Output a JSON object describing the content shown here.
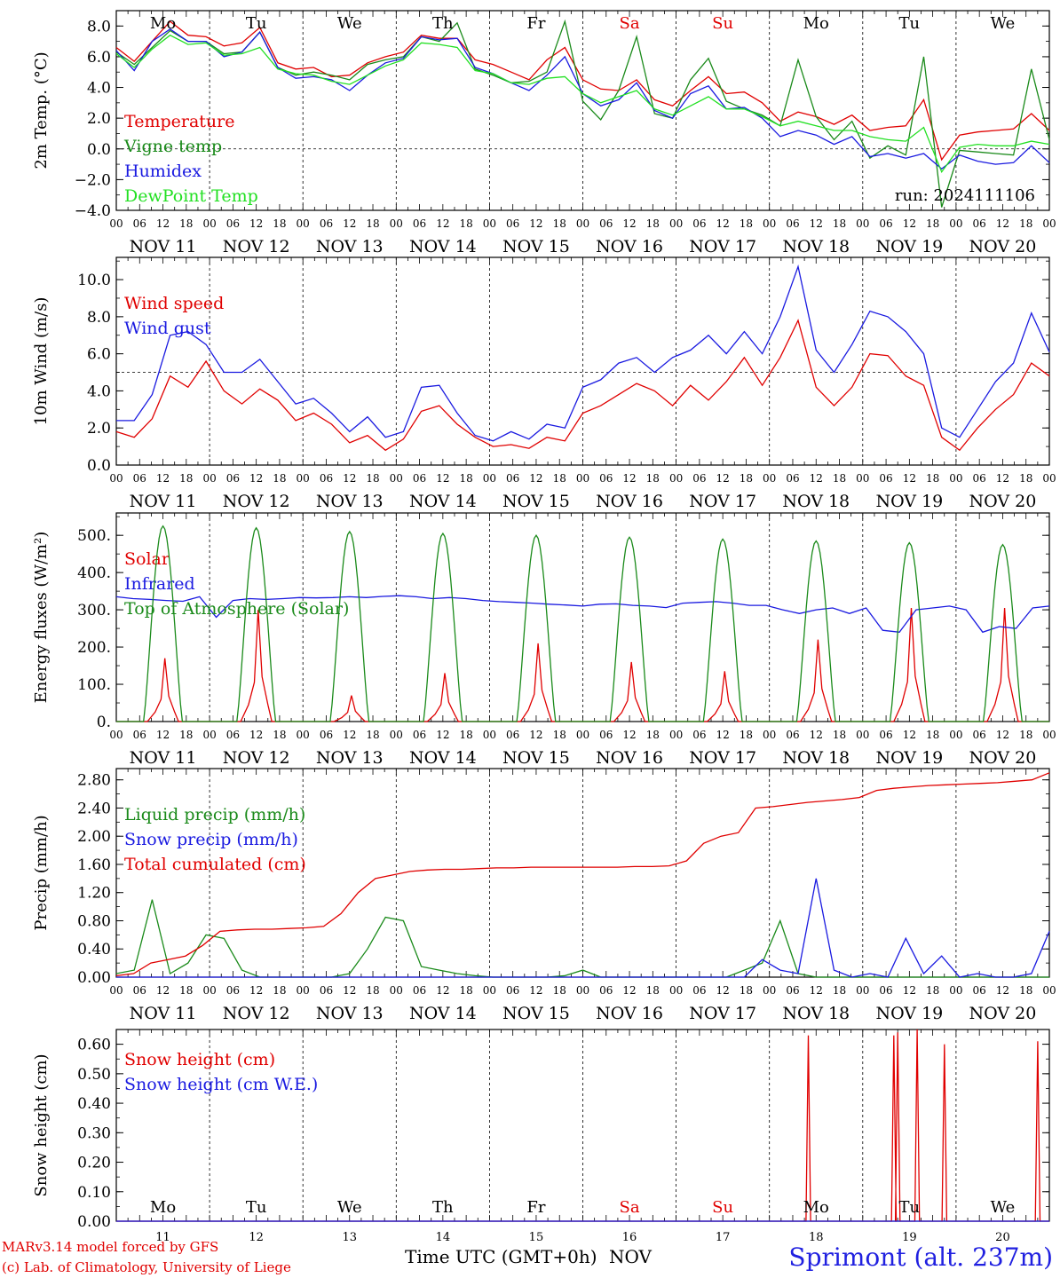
{
  "day_labels": [
    "Mo",
    "Tu",
    "We",
    "Th",
    "Fr",
    "Sa",
    "Su",
    "Mo",
    "Tu",
    "We"
  ],
  "day_colors": [
    "#000000",
    "#000000",
    "#000000",
    "#000000",
    "#000000",
    "#e00000",
    "#e00000",
    "#000000",
    "#000000",
    "#000000"
  ],
  "date_labels": [
    "NOV 11",
    "NOV 12",
    "NOV 13",
    "NOV 14",
    "NOV 15",
    "NOV 16",
    "NOV 17",
    "NOV 18",
    "NOV 19",
    "NOV 20"
  ],
  "hour_labels": [
    "00",
    "06",
    "12",
    "18"
  ],
  "bottom_day_numbers": [
    "11",
    "12",
    "13",
    "14",
    "15",
    "16",
    "17",
    "18",
    "19",
    "20"
  ],
  "bottom_month": "NOV",
  "xlabel": "Time UTC (GMT+0h)",
  "station": "Sprimont (alt. 237m)",
  "credits": [
    "MARv3.14 model forced by GFS",
    "(c) Lab. of Climatology, University of Liege"
  ],
  "run_label": "run: 2024111106",
  "colors": {
    "red": "#e00000",
    "green": "#1a8a1a",
    "blue": "#1a1ae0",
    "lightgreen": "#22e022"
  },
  "chart_data": [
    {
      "type": "line",
      "ylabel": "2m Temp. (°C)",
      "ylim": [
        -4,
        9
      ],
      "yticks": [
        "8.0",
        "6.0",
        "4.0",
        "2.0",
        "0.0",
        "−2.0",
        "−4.0"
      ],
      "ytick_values": [
        8,
        6,
        4,
        2,
        0,
        -2,
        -4
      ],
      "ref_line": 0,
      "x_hours_step": 6,
      "series": [
        {
          "name": "Temperature",
          "color": "#e00000",
          "values": [
            6.6,
            5.7,
            7.0,
            8.3,
            7.4,
            7.3,
            6.7,
            6.9,
            7.9,
            5.6,
            5.2,
            5.3,
            4.7,
            4.8,
            5.6,
            6.0,
            6.3,
            7.4,
            7.2,
            7.2,
            5.8,
            5.5,
            5.0,
            4.5,
            5.8,
            6.6,
            4.5,
            3.9,
            3.8,
            4.5,
            3.2,
            2.8,
            3.8,
            4.7,
            3.6,
            3.7,
            3.0,
            1.8,
            2.4,
            2.1,
            1.6,
            2.2,
            1.2,
            1.4,
            1.5,
            3.2,
            -0.7,
            0.9,
            1.1,
            1.2,
            1.3,
            2.3,
            1.2
          ]
        },
        {
          "name": "Vigne temp",
          "color": "#1a8a1a",
          "values": [
            6.3,
            5.5,
            6.6,
            7.7,
            7.0,
            7.0,
            6.2,
            6.3,
            7.6,
            5.3,
            4.8,
            5.0,
            4.8,
            4.5,
            5.5,
            5.8,
            6.0,
            7.3,
            7.0,
            8.2,
            5.2,
            4.8,
            4.3,
            4.4,
            5.0,
            8.3,
            3.1,
            1.9,
            3.8,
            7.3,
            2.3,
            2.0,
            4.5,
            5.9,
            3.1,
            2.6,
            2.2,
            1.5,
            5.8,
            2.1,
            0.6,
            1.8,
            -0.6,
            0.2,
            -0.4,
            6.0,
            -3.8,
            -0.1,
            -0.2,
            -0.3,
            -0.4,
            5.2,
            0.6
          ]
        },
        {
          "name": "Humidex",
          "color": "#1a1ae0",
          "values": [
            6.4,
            5.1,
            7.0,
            7.8,
            7.0,
            7.0,
            6.0,
            6.3,
            7.6,
            5.3,
            4.6,
            4.7,
            4.5,
            3.8,
            4.8,
            5.6,
            5.9,
            7.3,
            7.1,
            7.2,
            5.3,
            4.9,
            4.3,
            3.8,
            4.8,
            6.0,
            3.6,
            2.8,
            3.2,
            4.3,
            2.5,
            2.0,
            3.6,
            4.1,
            2.6,
            2.7,
            2.0,
            0.8,
            1.2,
            0.9,
            0.3,
            0.8,
            -0.5,
            -0.3,
            -0.6,
            -0.3,
            -1.3,
            -0.4,
            -0.8,
            -1.0,
            -0.9,
            0.2,
            -0.9
          ]
        },
        {
          "name": "DewPoint Temp",
          "color": "#22e022",
          "values": [
            6.2,
            5.3,
            6.5,
            7.4,
            6.8,
            6.9,
            6.1,
            6.2,
            6.6,
            5.2,
            4.9,
            4.8,
            4.4,
            4.2,
            4.8,
            5.4,
            5.8,
            6.9,
            6.8,
            6.6,
            5.1,
            4.9,
            4.3,
            4.2,
            4.6,
            4.7,
            3.6,
            3.0,
            3.4,
            3.8,
            2.6,
            2.2,
            2.8,
            3.4,
            2.6,
            2.6,
            2.1,
            1.5,
            1.8,
            1.5,
            1.2,
            1.2,
            0.8,
            0.6,
            0.5,
            1.4,
            -1.5,
            0.1,
            0.3,
            0.2,
            0.2,
            0.5,
            0.3
          ]
        }
      ]
    },
    {
      "type": "line",
      "ylabel": "10m Wind (m/s)",
      "ylim": [
        0,
        11.2
      ],
      "yticks": [
        "10.0",
        "8.0",
        "6.0",
        "4.0",
        "2.0",
        "0.0"
      ],
      "ytick_values": [
        10,
        8,
        6,
        4,
        2,
        0
      ],
      "ref_line": 5,
      "x_hours_step": 6,
      "series": [
        {
          "name": "Wind speed",
          "color": "#e00000",
          "values": [
            1.8,
            1.5,
            2.5,
            4.8,
            4.2,
            5.6,
            4.0,
            3.3,
            4.1,
            3.5,
            2.4,
            2.8,
            2.2,
            1.2,
            1.6,
            0.8,
            1.4,
            2.9,
            3.2,
            2.2,
            1.5,
            1.0,
            1.1,
            0.9,
            1.5,
            1.3,
            2.8,
            3.2,
            3.8,
            4.4,
            4.0,
            3.2,
            4.3,
            3.5,
            4.5,
            5.8,
            4.3,
            5.8,
            7.8,
            4.2,
            3.2,
            4.2,
            6.0,
            5.9,
            4.8,
            4.3,
            1.5,
            0.8,
            2.0,
            3.0,
            3.8,
            5.5,
            4.8
          ]
        },
        {
          "name": "Wind gust",
          "color": "#1a1ae0",
          "values": [
            2.4,
            2.4,
            3.8,
            7.0,
            7.2,
            6.5,
            5.0,
            5.0,
            5.7,
            4.5,
            3.3,
            3.6,
            2.8,
            1.8,
            2.6,
            1.5,
            1.8,
            4.2,
            4.3,
            2.8,
            1.6,
            1.3,
            1.8,
            1.4,
            2.2,
            2.0,
            4.2,
            4.6,
            5.5,
            5.8,
            5.0,
            5.8,
            6.2,
            7.0,
            6.0,
            7.2,
            6.0,
            8.0,
            10.7,
            6.2,
            5.0,
            6.5,
            8.3,
            8.0,
            7.2,
            6.0,
            2.0,
            1.5,
            3.0,
            4.5,
            5.5,
            8.2,
            6.1
          ]
        }
      ]
    },
    {
      "type": "line",
      "ylabel": "Energy fluxes (W/m²)",
      "ylim": [
        0,
        560
      ],
      "yticks": [
        "500.",
        "400.",
        "300.",
        "200.",
        "100.",
        "0."
      ],
      "ytick_values": [
        500,
        400,
        300,
        200,
        100,
        0
      ],
      "x_hours_step": 6,
      "series": [
        {
          "name": "Solar",
          "color": "#e00000",
          "peaks": [
            170,
            300,
            70,
            130,
            210,
            160,
            135,
            220,
            305,
            305
          ]
        },
        {
          "name": "Infrared",
          "color": "#1a1ae0",
          "values": [
            335,
            330,
            328,
            325,
            323,
            335,
            280,
            325,
            330,
            328,
            330,
            333,
            332,
            333,
            335,
            333,
            336,
            338,
            335,
            330,
            333,
            330,
            325,
            322,
            320,
            318,
            315,
            313,
            310,
            315,
            316,
            312,
            310,
            306,
            318,
            320,
            322,
            318,
            312,
            312,
            300,
            290,
            300,
            305,
            290,
            305,
            245,
            240,
            300,
            305,
            310,
            300,
            240,
            255,
            250,
            305,
            310
          ]
        },
        {
          "name": "Top of Atmosphere (Solar)",
          "color": "#1a8a1a",
          "peaks": [
            525,
            520,
            510,
            505,
            500,
            495,
            490,
            485,
            480,
            475
          ]
        }
      ]
    },
    {
      "type": "line",
      "ylabel": "Precip (mm/h)",
      "ylim": [
        0,
        2.96
      ],
      "yticks": [
        "2.80",
        "2.40",
        "2.00",
        "1.60",
        "1.20",
        "0.80",
        "0.40",
        "0.00"
      ],
      "ytick_values": [
        2.8,
        2.4,
        2.0,
        1.6,
        1.2,
        0.8,
        0.4,
        0.0
      ],
      "x_hours_step": 6,
      "series": [
        {
          "name": "Liquid precip (mm/h)",
          "color": "#1a8a1a",
          "values": [
            0.05,
            0.1,
            1.1,
            0.05,
            0.2,
            0.6,
            0.55,
            0.1,
            0.0,
            0.0,
            0.0,
            0.0,
            0.0,
            0.05,
            0.4,
            0.85,
            0.8,
            0.15,
            0.1,
            0.05,
            0.02,
            0.0,
            0.0,
            0.0,
            0.0,
            0.02,
            0.1,
            0.0,
            0.0,
            0.0,
            0.0,
            0.0,
            0.0,
            0.0,
            0.0,
            0.1,
            0.2,
            0.8,
            0.05,
            0.0,
            0.0,
            0.0,
            0.0,
            0.0,
            0.0,
            0.0,
            0.0,
            0.0,
            0.0,
            0.0,
            0.0,
            0.0,
            0.0
          ]
        },
        {
          "name": "Snow precip (mm/h)",
          "color": "#1a1ae0",
          "values": [
            0.0,
            0.0,
            0.0,
            0.0,
            0.0,
            0.0,
            0.0,
            0.0,
            0.0,
            0.0,
            0.0,
            0.0,
            0.0,
            0.0,
            0.0,
            0.0,
            0.0,
            0.0,
            0.0,
            0.0,
            0.0,
            0.0,
            0.0,
            0.0,
            0.0,
            0.0,
            0.0,
            0.0,
            0.0,
            0.0,
            0.0,
            0.0,
            0.0,
            0.0,
            0.0,
            0.0,
            0.25,
            0.1,
            0.05,
            1.4,
            0.1,
            0.0,
            0.05,
            0.0,
            0.55,
            0.05,
            0.3,
            0.0,
            0.05,
            0.0,
            0.0,
            0.05,
            0.65
          ]
        },
        {
          "name": "Total cumulated (cm)",
          "color": "#e00000",
          "values": [
            0.02,
            0.05,
            0.2,
            0.25,
            0.3,
            0.45,
            0.65,
            0.67,
            0.68,
            0.68,
            0.69,
            0.7,
            0.72,
            0.9,
            1.2,
            1.4,
            1.45,
            1.5,
            1.52,
            1.53,
            1.53,
            1.54,
            1.55,
            1.55,
            1.56,
            1.56,
            1.56,
            1.56,
            1.56,
            1.56,
            1.57,
            1.57,
            1.58,
            1.65,
            1.9,
            2.0,
            2.05,
            2.4,
            2.42,
            2.45,
            2.48,
            2.5,
            2.52,
            2.55,
            2.65,
            2.68,
            2.7,
            2.72,
            2.73,
            2.74,
            2.75,
            2.76,
            2.78,
            2.8,
            2.9
          ]
        }
      ]
    },
    {
      "type": "line",
      "ylabel": "Snow height (cm)",
      "ylim": [
        0,
        0.65
      ],
      "yticks": [
        "0.60",
        "0.50",
        "0.40",
        "0.30",
        "0.20",
        "0.10",
        "0.00"
      ],
      "ytick_values": [
        0.6,
        0.5,
        0.4,
        0.3,
        0.2,
        0.1,
        0.0
      ],
      "x_hours_step": 6,
      "series": [
        {
          "name": "Snow height (cm)",
          "color": "#e00000",
          "spikes": [
            {
              "hour": 178,
              "value": 0.63
            },
            {
              "hour": 200,
              "value": 0.63
            },
            {
              "hour": 201,
              "value": 0.64
            },
            {
              "hour": 206,
              "value": 0.65
            },
            {
              "hour": 213,
              "value": 0.6
            },
            {
              "hour": 237,
              "value": 0.61
            }
          ]
        },
        {
          "name": "Snow height (cm W.E.)",
          "color": "#1a1ae0",
          "values": [
            0,
            0
          ]
        }
      ]
    }
  ]
}
